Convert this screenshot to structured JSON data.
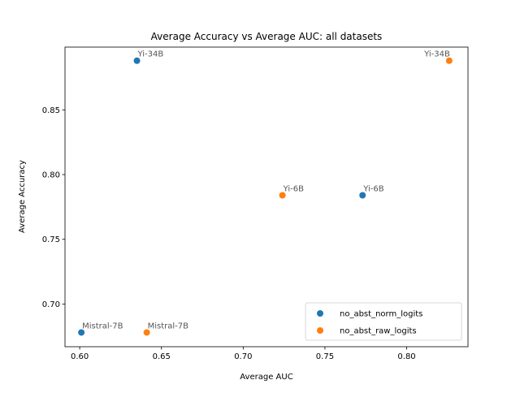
{
  "chart_data": {
    "type": "scatter",
    "title": "Average Accuracy vs Average AUC: all datasets",
    "xlabel": "Average AUC",
    "ylabel": "Average Accuracy",
    "xlim": [
      0.591,
      0.8375
    ],
    "ylim": [
      0.667,
      0.8985
    ],
    "xticks": [
      0.6,
      0.65,
      0.7,
      0.75,
      0.8
    ],
    "xtick_labels": [
      "0.60",
      "0.65",
      "0.70",
      "0.75",
      "0.80"
    ],
    "yticks": [
      0.7,
      0.75,
      0.8,
      0.85
    ],
    "ytick_labels": [
      "0.70",
      "0.75",
      "0.80",
      "0.85"
    ],
    "grid": false,
    "legend_position": "bottom-right",
    "series": [
      {
        "name": "no_abst_norm_logits",
        "color": "#1f77b4",
        "points": [
          {
            "label": "Yi-34B",
            "x": 0.635,
            "y": 0.888
          },
          {
            "label": "Yi-6B",
            "x": 0.773,
            "y": 0.784
          },
          {
            "label": "Mistral-7B",
            "x": 0.601,
            "y": 0.678
          }
        ]
      },
      {
        "name": "no_abst_raw_logits",
        "color": "#ff7f0e",
        "points": [
          {
            "label": "Yi-34B",
            "x": 0.826,
            "y": 0.888
          },
          {
            "label": "Yi-6B",
            "x": 0.724,
            "y": 0.784
          },
          {
            "label": "Mistral-7B",
            "x": 0.641,
            "y": 0.678
          }
        ]
      }
    ]
  }
}
